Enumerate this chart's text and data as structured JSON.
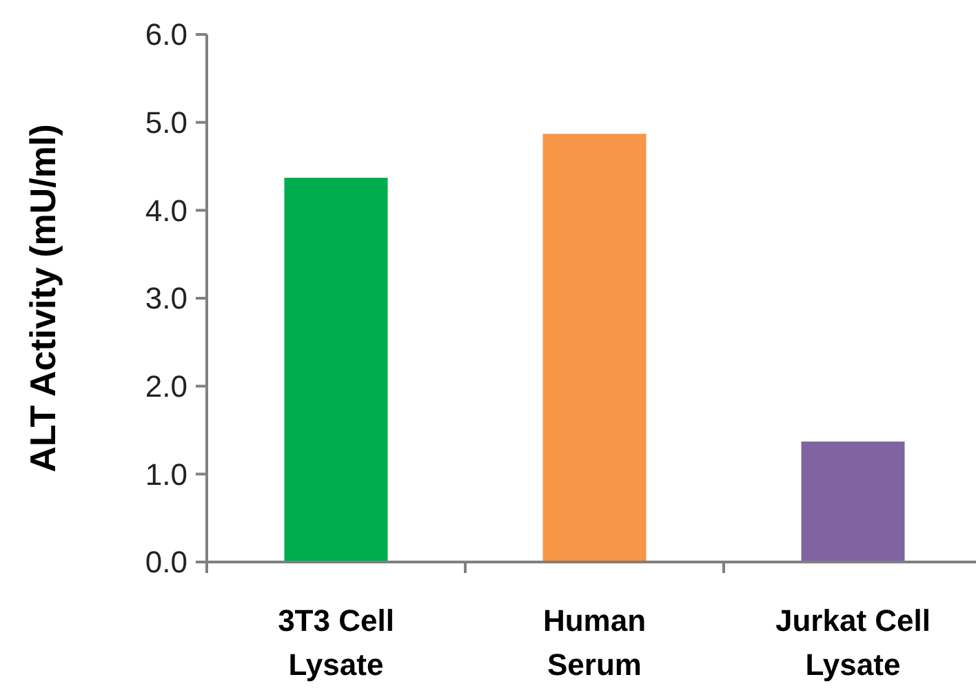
{
  "chart_data": {
    "type": "bar",
    "ylabel": "ALT Activity (mU/ml)",
    "categories": [
      "3T3 Cell\nLysate",
      "Human\nSerum",
      "Jurkat Cell\nLysate"
    ],
    "values": [
      4.37,
      4.87,
      1.37
    ],
    "colors": [
      "#00ad4e",
      "#f79646",
      "#8064a2"
    ],
    "ylim": [
      0,
      6
    ],
    "yticks": [
      {
        "value": 0,
        "label": "0.0"
      },
      {
        "value": 1,
        "label": "1.0"
      },
      {
        "value": 2,
        "label": "2.0"
      },
      {
        "value": 3,
        "label": "3.0"
      },
      {
        "value": 4,
        "label": "4.0"
      },
      {
        "value": 5,
        "label": "5.0"
      },
      {
        "value": 6,
        "label": "6.0"
      }
    ],
    "grid": false
  }
}
